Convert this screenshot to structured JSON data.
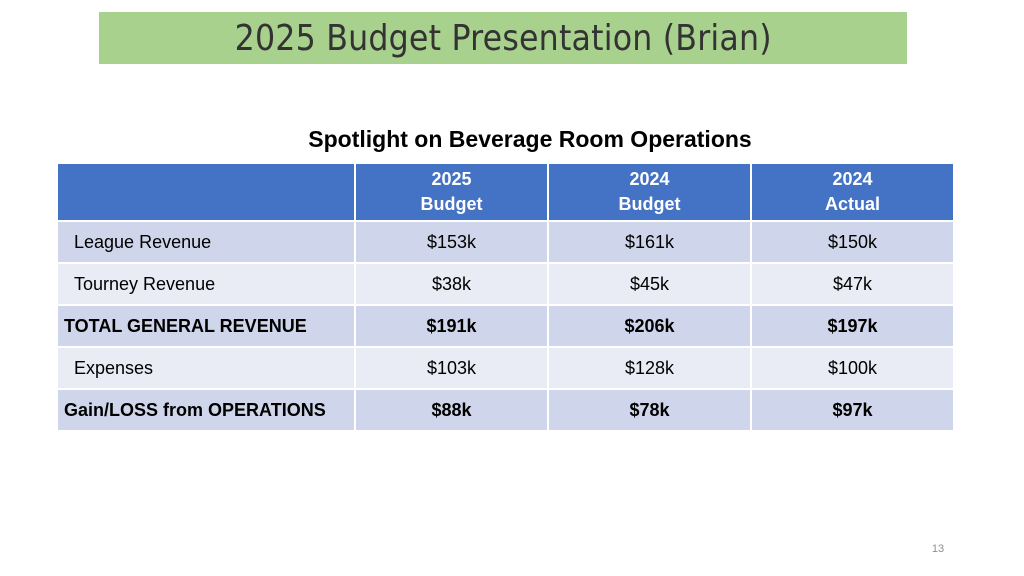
{
  "slide": {
    "title": "2025 Budget Presentation (Brian)",
    "subtitle": "Spotlight on Beverage Room Operations",
    "page_number": "13"
  },
  "table": {
    "columns": [
      {
        "line1": "",
        "line2": ""
      },
      {
        "line1": "2025",
        "line2": "Budget"
      },
      {
        "line1": "2024",
        "line2": "Budget"
      },
      {
        "line1": "2024",
        "line2": "Actual"
      }
    ],
    "rows": [
      {
        "label": "League Revenue",
        "values": [
          "$153k",
          "$161k",
          "$150k"
        ]
      },
      {
        "label": "Tourney Revenue",
        "values": [
          "$38k",
          "$45k",
          "$47k"
        ]
      },
      {
        "label": "TOTAL GENERAL REVENUE",
        "values": [
          "$191k",
          "$206k",
          "$197k"
        ]
      },
      {
        "label": "Expenses",
        "values": [
          "$103k",
          "$128k",
          "$100k"
        ]
      },
      {
        "label": "Gain/LOSS from OPERATIONS",
        "values": [
          "$88k",
          "$78k",
          "$97k"
        ]
      }
    ]
  },
  "colors": {
    "title_bar": "#a9d18e",
    "header": "#4472c4",
    "band_dark": "#cfd5ea",
    "band_light": "#e9ebf5"
  }
}
